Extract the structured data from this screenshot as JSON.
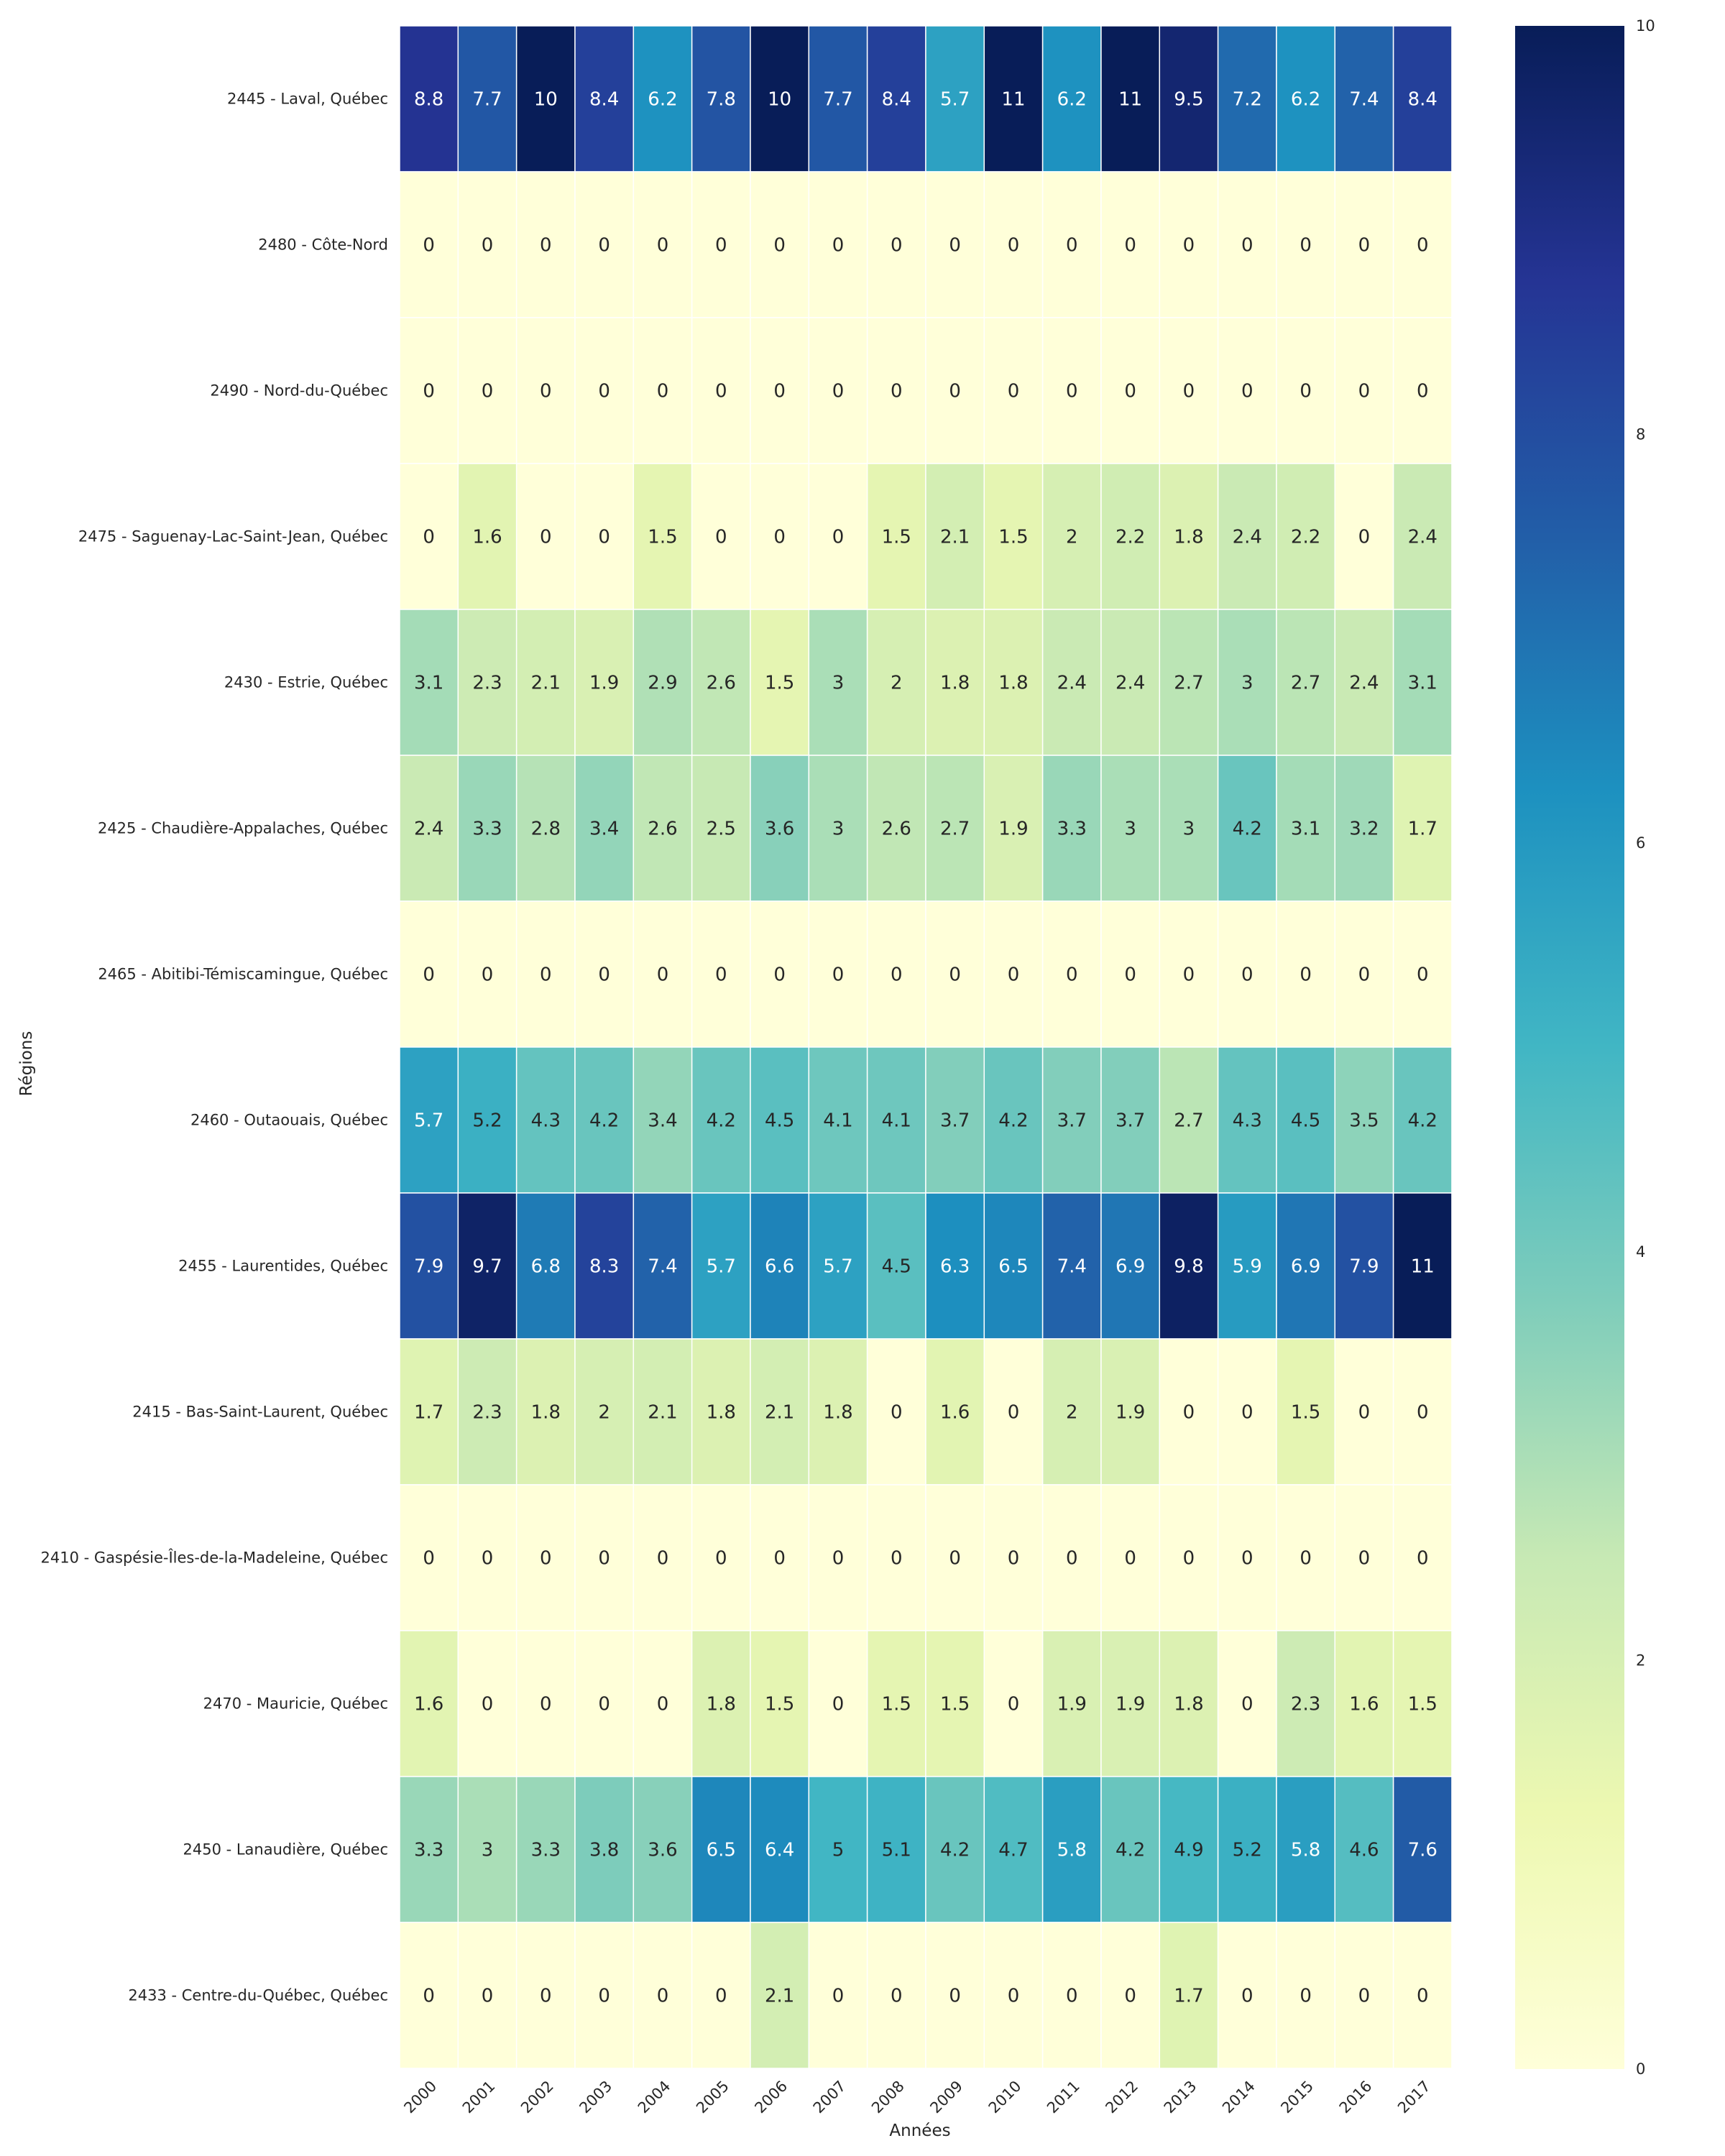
{
  "chart_data": {
    "type": "heatmap",
    "xlabel": "Années",
    "ylabel": "Régions",
    "colormap": "YlGnBu",
    "vmin": 0,
    "vmax": 10,
    "colorbar_ticks": [
      "0",
      "2",
      "4",
      "6",
      "8",
      "10"
    ],
    "columns": [
      "2000",
      "2001",
      "2002",
      "2003",
      "2004",
      "2005",
      "2006",
      "2007",
      "2008",
      "2009",
      "2010",
      "2011",
      "2012",
      "2013",
      "2014",
      "2015",
      "2016",
      "2017"
    ],
    "rows": [
      "2445 - Laval, Québec",
      "2480 - Côte-Nord",
      "2490 - Nord-du-Québec",
      "2475 - Saguenay-Lac-Saint-Jean, Québec",
      "2430 - Estrie, Québec",
      "2425 - Chaudière-Appalaches, Québec",
      "2465 - Abitibi-Témiscamingue, Québec",
      "2460 - Outaouais, Québec",
      "2455 - Laurentides, Québec",
      "2415 - Bas-Saint-Laurent, Québec",
      "2410 - Gaspésie-Îles-de-la-Madeleine, Québec",
      "2470 - Mauricie, Québec",
      "2450 - Lanaudière, Québec",
      "2433 - Centre-du-Québec, Québec"
    ],
    "values": [
      [
        8.8,
        7.7,
        10,
        8.4,
        6.2,
        7.8,
        10,
        7.7,
        8.4,
        5.7,
        11,
        6.2,
        11,
        9.5,
        7.2,
        6.2,
        7.4,
        8.4
      ],
      [
        0,
        0,
        0,
        0,
        0,
        0,
        0,
        0,
        0,
        0,
        0,
        0,
        0,
        0,
        0,
        0,
        0,
        0
      ],
      [
        0,
        0,
        0,
        0,
        0,
        0,
        0,
        0,
        0,
        0,
        0,
        0,
        0,
        0,
        0,
        0,
        0,
        0
      ],
      [
        0,
        1.6,
        0,
        0,
        1.5,
        0,
        0,
        0,
        1.5,
        2.1,
        1.5,
        2,
        2.2,
        1.8,
        2.4,
        2.2,
        0,
        2.4
      ],
      [
        3.1,
        2.3,
        2.1,
        1.9,
        2.9,
        2.6,
        1.5,
        3,
        2,
        1.8,
        1.8,
        2.4,
        2.4,
        2.7,
        3,
        2.7,
        2.4,
        3.1
      ],
      [
        2.4,
        3.3,
        2.8,
        3.4,
        2.6,
        2.5,
        3.6,
        3,
        2.6,
        2.7,
        1.9,
        3.3,
        3,
        3,
        4.2,
        3.1,
        3.2,
        1.7
      ],
      [
        0,
        0,
        0,
        0,
        0,
        0,
        0,
        0,
        0,
        0,
        0,
        0,
        0,
        0,
        0,
        0,
        0,
        0
      ],
      [
        5.7,
        5.2,
        4.3,
        4.2,
        3.4,
        4.2,
        4.5,
        4.1,
        4.1,
        3.7,
        4.2,
        3.7,
        3.7,
        2.7,
        4.3,
        4.5,
        3.5,
        4.2
      ],
      [
        7.9,
        9.7,
        6.8,
        8.3,
        7.4,
        5.7,
        6.6,
        5.7,
        4.5,
        6.3,
        6.5,
        7.4,
        6.9,
        9.8,
        5.9,
        6.9,
        7.9,
        11
      ],
      [
        1.7,
        2.3,
        1.8,
        2,
        2.1,
        1.8,
        2.1,
        1.8,
        0,
        1.6,
        0,
        2,
        1.9,
        0,
        0,
        1.5,
        0,
        0
      ],
      [
        0,
        0,
        0,
        0,
        0,
        0,
        0,
        0,
        0,
        0,
        0,
        0,
        0,
        0,
        0,
        0,
        0,
        0
      ],
      [
        1.6,
        0,
        0,
        0,
        0,
        1.8,
        1.5,
        0,
        1.5,
        1.5,
        0,
        1.9,
        1.9,
        1.8,
        0,
        2.3,
        1.6,
        1.5
      ],
      [
        3.3,
        3,
        3.3,
        3.8,
        3.6,
        6.5,
        6.4,
        5,
        5.1,
        4.2,
        4.7,
        5.8,
        4.2,
        4.9,
        5.2,
        5.8,
        4.6,
        7.6
      ],
      [
        0,
        0,
        0,
        0,
        0,
        0,
        2.1,
        0,
        0,
        0,
        0,
        0,
        0,
        1.7,
        0,
        0,
        0,
        0
      ]
    ]
  }
}
